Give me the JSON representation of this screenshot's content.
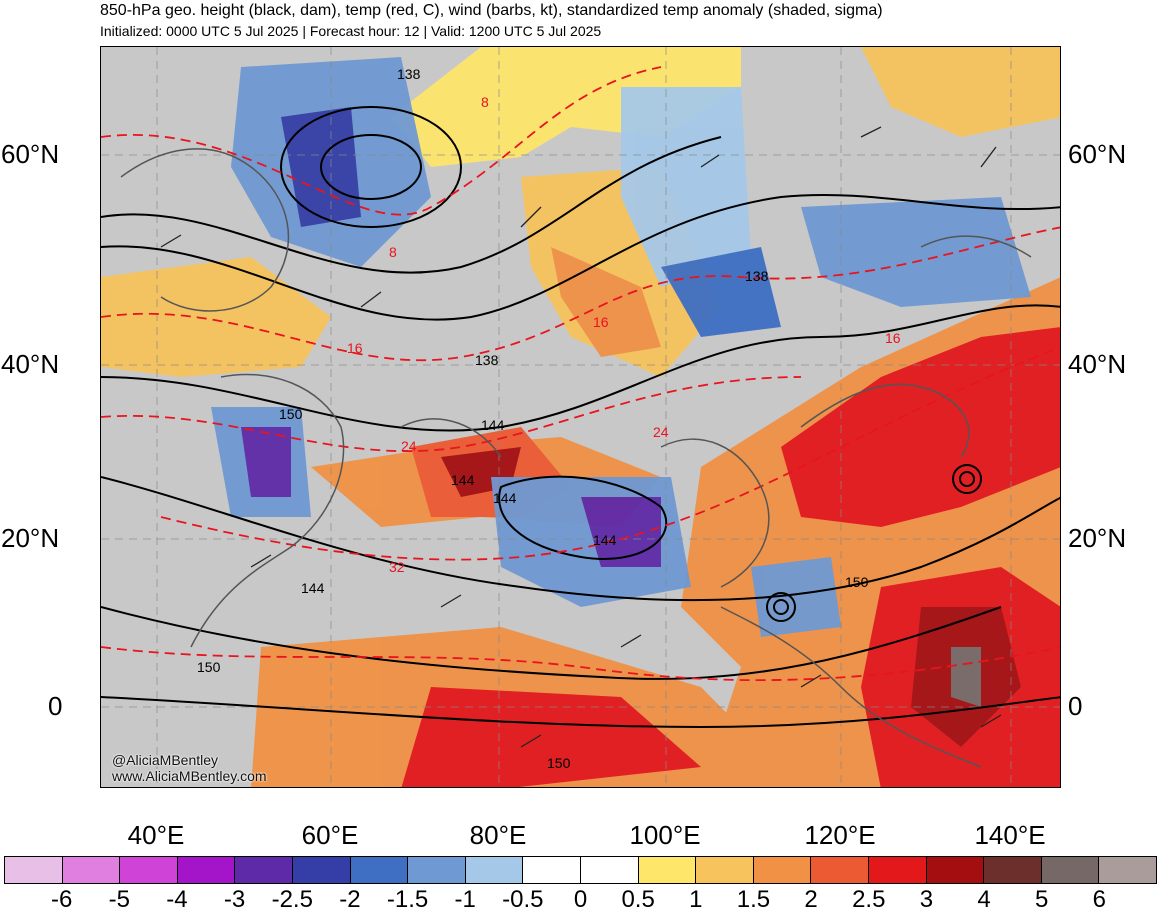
{
  "header": {
    "title": "850-hPa geo. height (black, dam), temp (red, C), wind (barbs, kt), standardized temp anomaly (shaded, sigma)",
    "subtitle": "Initialized: 0000 UTC 5 Jul 2025 | Forecast hour: 12 | Valid: 1200 UTC 5 Jul 2025"
  },
  "map": {
    "left_lat_labels": [
      "60°N",
      "40°N",
      "20°N",
      "0"
    ],
    "right_lat_labels": [
      "60°N",
      "40°N",
      "20°N",
      "0"
    ],
    "lon_labels": [
      "40°E",
      "60°E",
      "80°E",
      "100°E",
      "120°E",
      "140°E"
    ],
    "height_contour_labels": [
      "138",
      "138",
      "138",
      "144",
      "144",
      "144",
      "144",
      "150",
      "150",
      "150",
      "150",
      "144"
    ],
    "temp_contour_labels": [
      "8",
      "8",
      "16",
      "16",
      "24",
      "24",
      "32",
      "16"
    ],
    "credit_handle": "@AliciaMBentley",
    "credit_url": "www.AliciaMBentley.com",
    "colors": {
      "land_gray": "#c8c8c8",
      "height_contour": "#000000",
      "temp_contour": "#e8141e",
      "coast": "#555555"
    }
  },
  "colorbar": {
    "labels": [
      "-6",
      "-5",
      "-4",
      "-3",
      "-2.5",
      "-2",
      "-1.5",
      "-1",
      "-0.5",
      "0",
      "0.5",
      "1",
      "1.5",
      "2",
      "2.5",
      "3",
      "4",
      "5",
      "6"
    ],
    "colors": [
      "#e8bfe6",
      "#e07fe0",
      "#cf44d6",
      "#a414c8",
      "#5e2aa8",
      "#343ea6",
      "#3e6fc3",
      "#6f99d3",
      "#a5c8e8",
      "#ffffff",
      "#ffffff",
      "#fde66a",
      "#f7c35c",
      "#f19145",
      "#ec5a33",
      "#e3181b",
      "#a40e10",
      "#6c2f2b",
      "#766866",
      "#aa9c9a"
    ]
  }
}
